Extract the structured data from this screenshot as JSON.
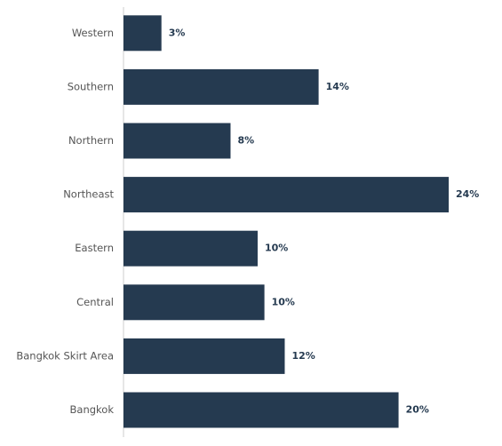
{
  "chart_data": {
    "type": "hbar",
    "categories": [
      "Western",
      "Southern",
      "Northern",
      "Northeast",
      "Eastern",
      "Central",
      "Bangkok Skirt Area",
      "Bangkok"
    ],
    "values": [
      2.8,
      14.4,
      7.9,
      24,
      9.9,
      10.4,
      11.9,
      20.3
    ],
    "value_labels": [
      "3%",
      "14%",
      "8%",
      "24%",
      "10%",
      "10%",
      "12%",
      "20%"
    ],
    "color": "#253a50"
  }
}
